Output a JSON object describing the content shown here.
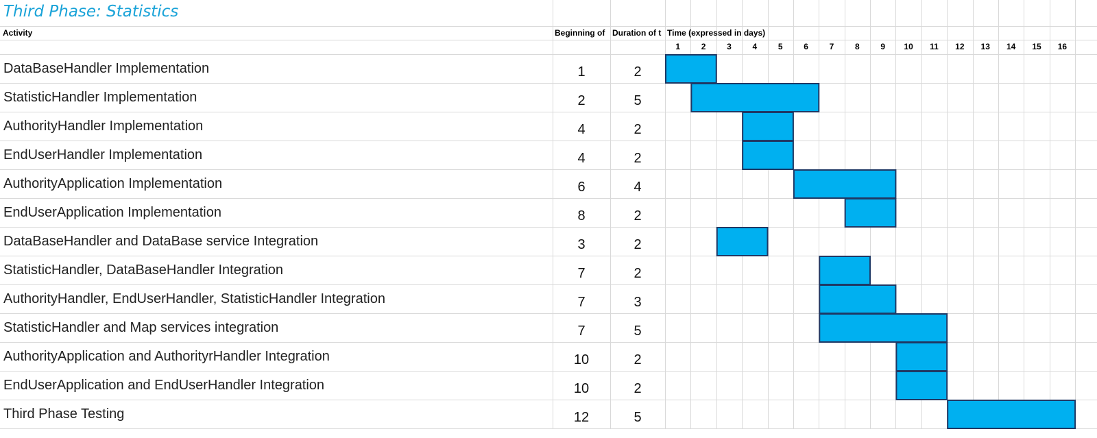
{
  "title": "Third Phase: Statistics",
  "headers": {
    "activity": "Activity",
    "beginning": "Beginning of",
    "duration": "Duration of t",
    "time": "Time (expressed in days)"
  },
  "colors": {
    "bar_fill": "#00b0f0",
    "bar_border": "#1f3864",
    "grid": "#d9d9d9",
    "title": "#1aa3d8"
  },
  "chart_data": {
    "type": "gantt",
    "title": "Third Phase: Statistics",
    "x_label": "Time (expressed in days)",
    "days": [
      "1",
      "2",
      "3",
      "4",
      "5",
      "6",
      "7",
      "8",
      "9",
      "10",
      "11",
      "12",
      "13",
      "14",
      "15",
      "16"
    ],
    "tasks": [
      {
        "activity": "DataBaseHandler Implementation",
        "start": 1,
        "duration": 2
      },
      {
        "activity": "StatisticHandler Implementation",
        "start": 2,
        "duration": 5
      },
      {
        "activity": "AuthorityHandler Implementation",
        "start": 4,
        "duration": 2
      },
      {
        "activity": "EndUserHandler Implementation",
        "start": 4,
        "duration": 2
      },
      {
        "activity": "AuthorityApplication Implementation",
        "start": 6,
        "duration": 4
      },
      {
        "activity": "EndUserApplication Implementation",
        "start": 8,
        "duration": 2
      },
      {
        "activity": "DataBaseHandler and DataBase service Integration",
        "start": 3,
        "duration": 2
      },
      {
        "activity": "StatisticHandler, DataBaseHandler Integration",
        "start": 7,
        "duration": 2
      },
      {
        "activity": "AuthorityHandler, EndUserHandler, StatisticHandler Integration",
        "start": 7,
        "duration": 3
      },
      {
        "activity": "StatisticHandler and Map services integration",
        "start": 7,
        "duration": 5
      },
      {
        "activity": "AuthorityApplication and AuthorityrHandler Integration",
        "start": 10,
        "duration": 2
      },
      {
        "activity": "EndUserApplication and EndUserHandler Integration",
        "start": 10,
        "duration": 2
      },
      {
        "activity": "Third Phase Testing",
        "start": 12,
        "duration": 5
      }
    ]
  }
}
